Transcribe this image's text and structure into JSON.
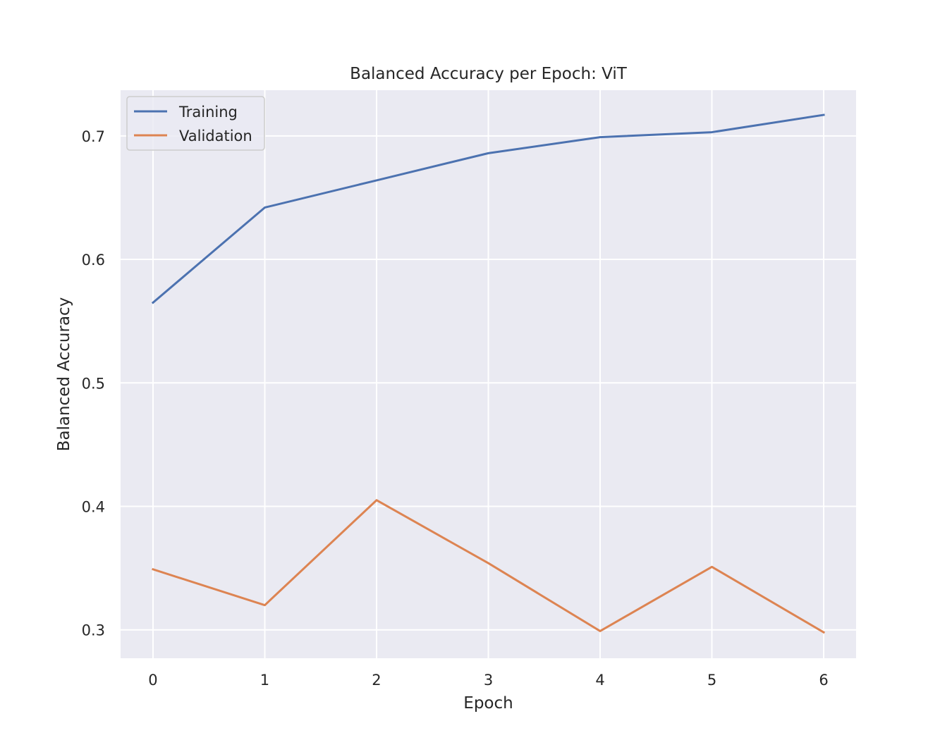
{
  "chart_data": {
    "type": "line",
    "title": "Balanced Accuracy per Epoch: ViT",
    "xlabel": "Epoch",
    "ylabel": "Balanced Accuracy",
    "x": [
      0,
      1,
      2,
      3,
      4,
      5,
      6
    ],
    "xticks": [
      "0",
      "1",
      "2",
      "3",
      "4",
      "5",
      "6"
    ],
    "yticks": [
      "0.3",
      "0.4",
      "0.5",
      "0.6",
      "0.7"
    ],
    "xlim": [
      -0.29,
      6.29
    ],
    "ylim": [
      0.277,
      0.737
    ],
    "grid": true,
    "legend_position": "upper-left",
    "background_color": "#eaeaf2",
    "series": [
      {
        "name": "Training",
        "color": "#4c72b0",
        "values": [
          0.565,
          0.642,
          0.664,
          0.686,
          0.699,
          0.703,
          0.717
        ]
      },
      {
        "name": "Validation",
        "color": "#dd8452",
        "values": [
          0.349,
          0.32,
          0.405,
          0.354,
          0.299,
          0.351,
          0.298
        ]
      }
    ]
  }
}
